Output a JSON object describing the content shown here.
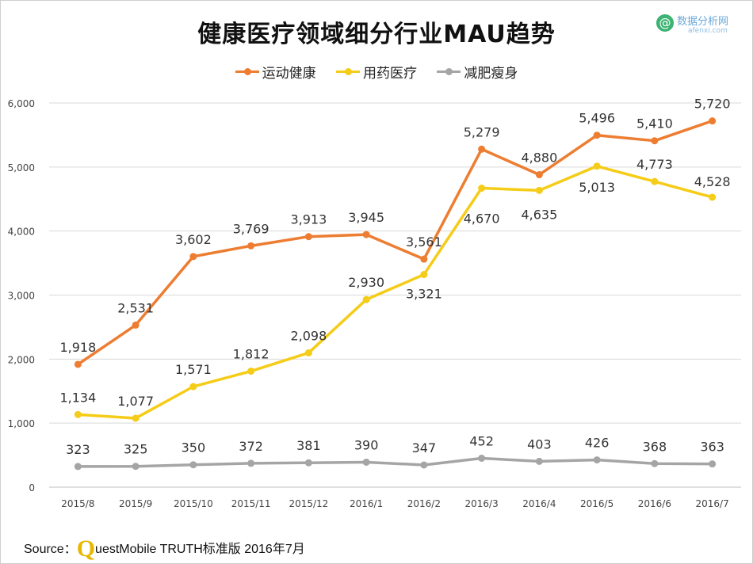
{
  "watermark": {
    "symbol": "@",
    "name": "数据分析网",
    "url": "afenxi.com"
  },
  "source": {
    "prefix": "Source：",
    "brand_initial": "Q",
    "text": "uestMobile TRUTH标准版 2016年7月"
  },
  "chart_data": {
    "type": "line",
    "title": "健康医疗领域细分行业MAU趋势",
    "xlabel": "",
    "ylabel": "",
    "categories": [
      "2015/8",
      "2015/9",
      "2015/10",
      "2015/11",
      "2015/12",
      "2016/1",
      "2016/2",
      "2016/3",
      "2016/4",
      "2016/5",
      "2016/6",
      "2016/7"
    ],
    "ylim": [
      0,
      6000
    ],
    "yticks": [
      "0",
      "1,000",
      "2,000",
      "3,000",
      "4,000",
      "5,000",
      "6,000"
    ],
    "grid": true,
    "legend_position": "top-center",
    "series": [
      {
        "name": "运动健康",
        "color": "#ed7d31",
        "values": [
          1918,
          2531,
          3602,
          3769,
          3913,
          3945,
          3561,
          5279,
          4880,
          5496,
          5410,
          5720
        ],
        "labels": [
          "1,918",
          "2,531",
          "3,602",
          "3,769",
          "3,913",
          "3,945",
          "3,561",
          "5,279",
          "4,880",
          "5,496",
          "5,410",
          "5,720"
        ]
      },
      {
        "name": "用药医疗",
        "color": "#f5cc17",
        "values": [
          1134,
          1077,
          1571,
          1812,
          2098,
          2930,
          3321,
          4670,
          4635,
          5013,
          4773,
          4528
        ],
        "labels": [
          "1,134",
          "1,077",
          "1,571",
          "1,812",
          "2,098",
          "2,930",
          "3,321",
          "4,670",
          "4,635",
          "5,013",
          "4,773",
          "4,528"
        ]
      },
      {
        "name": "减肥瘦身",
        "color": "#a5a5a5",
        "values": [
          323,
          325,
          350,
          372,
          381,
          390,
          347,
          452,
          403,
          426,
          368,
          363
        ],
        "labels": [
          "323",
          "325",
          "350",
          "372",
          "381",
          "390",
          "347",
          "452",
          "403",
          "426",
          "368",
          "363"
        ]
      }
    ]
  }
}
